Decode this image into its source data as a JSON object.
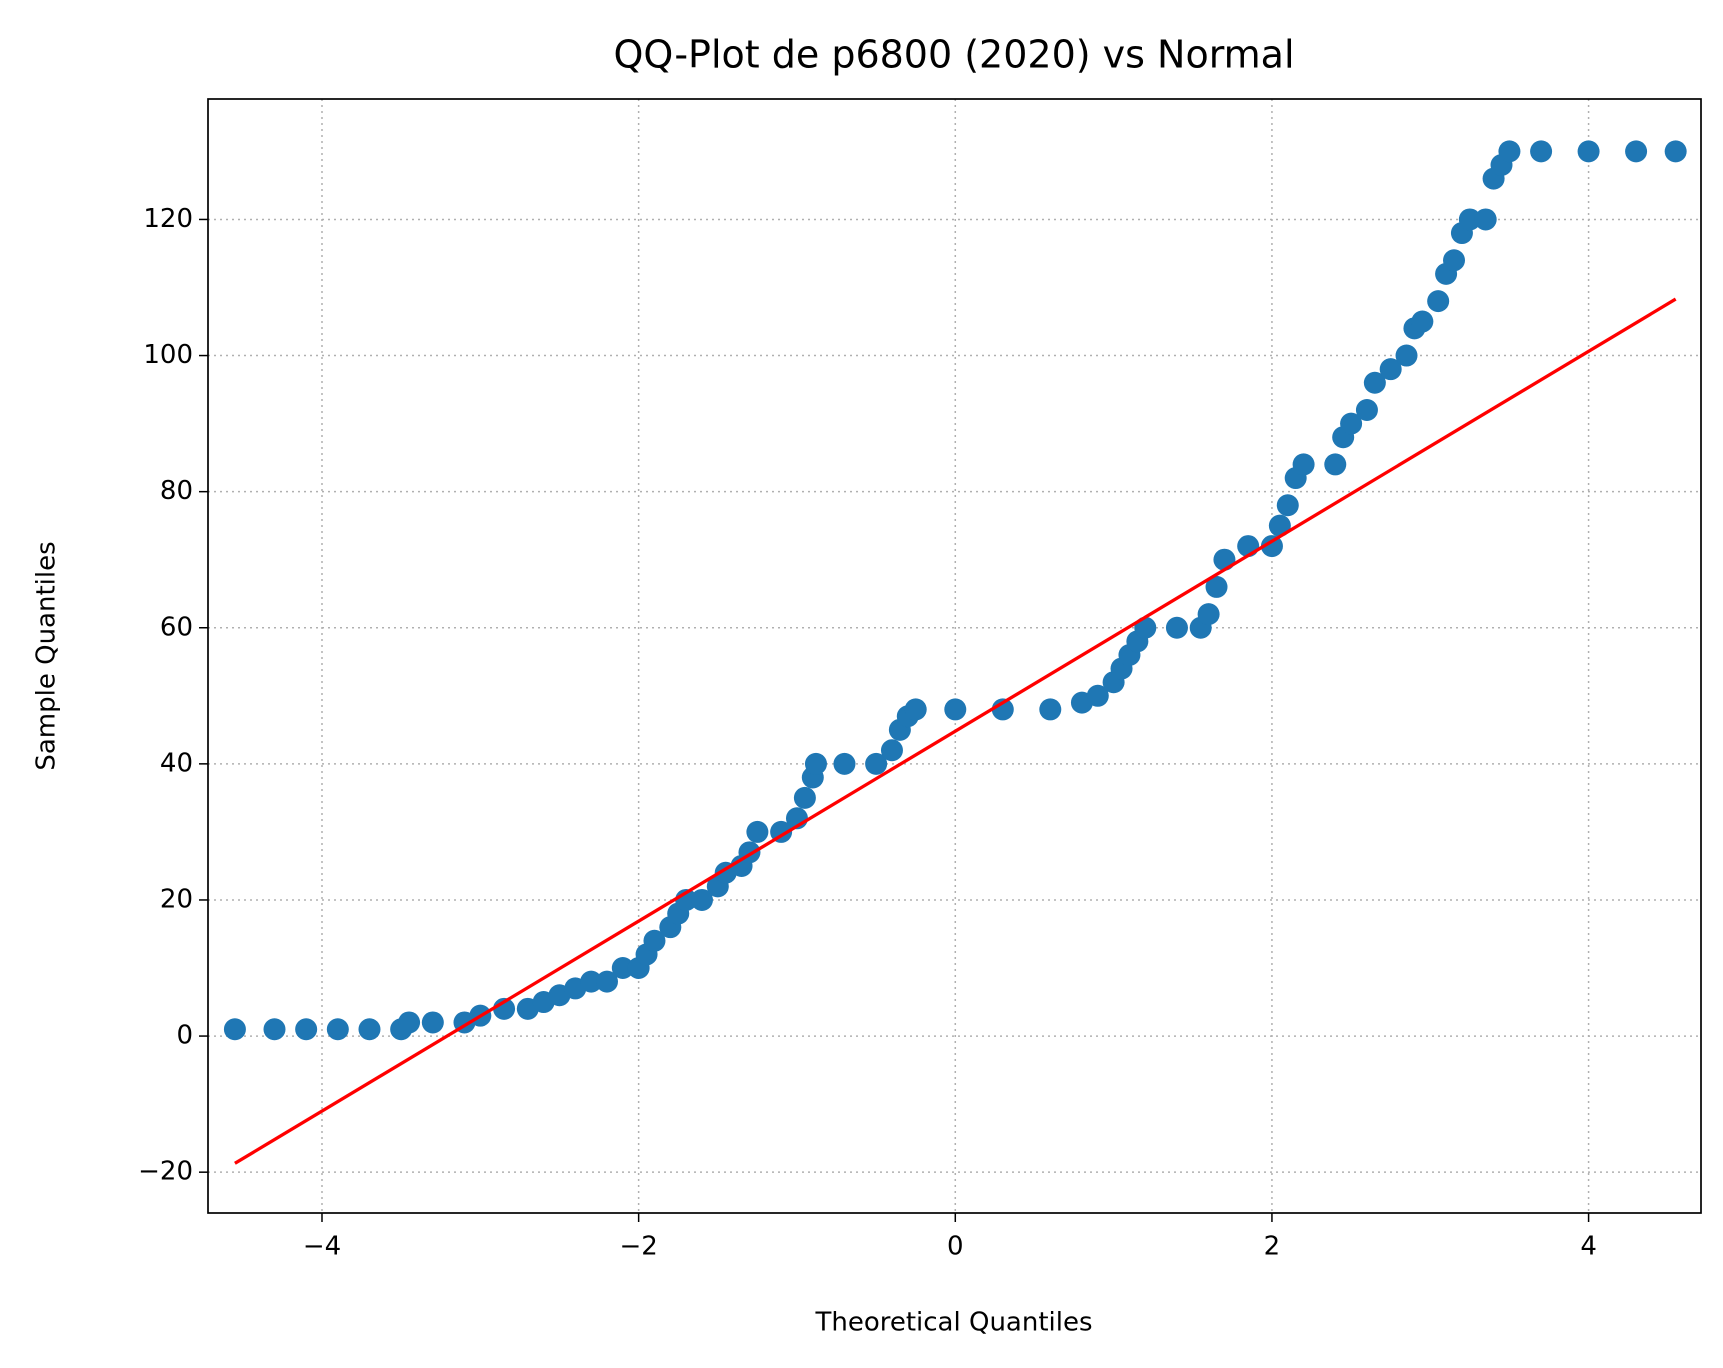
{
  "chart_data": {
    "type": "scatter",
    "title": "QQ-Plot de p6800 (2020) vs Normal",
    "x_label": "Theoretical Quantiles",
    "y_label": "Sample Quantiles",
    "xlim": [
      -4.72,
      4.71
    ],
    "ylim": [
      -26,
      137.7
    ],
    "xticks": [
      {
        "value": -4,
        "label": "−4"
      },
      {
        "value": -2,
        "label": "−2"
      },
      0,
      2,
      4
    ],
    "yticks": [
      {
        "value": -20,
        "label": "−20"
      },
      0,
      20,
      40,
      60,
      80,
      100,
      120
    ],
    "grid": true,
    "series": [
      {
        "type": "scatter",
        "color": "#1f77b4",
        "x": [
          -4.55,
          -4.3,
          -4.1,
          -3.9,
          -3.7,
          -3.5,
          -3.45,
          -3.3,
          -3.1,
          -3.0,
          -2.85,
          -2.7,
          -2.6,
          -2.5,
          -2.4,
          -2.3,
          -2.2,
          -2.1,
          -2.0,
          -1.95,
          -1.9,
          -1.8,
          -1.75,
          -1.7,
          -1.6,
          -1.5,
          -1.45,
          -1.35,
          -1.3,
          -1.25,
          -1.1,
          -1.0,
          -0.95,
          -0.9,
          -0.88,
          -0.7,
          -0.5,
          -0.4,
          -0.35,
          -0.3,
          -0.25,
          0,
          0.3,
          0.6,
          0.8,
          0.9,
          1.0,
          1.05,
          1.1,
          1.15,
          1.2,
          1.4,
          1.55,
          1.6,
          1.65,
          1.7,
          1.85,
          2.0,
          2.05,
          2.1,
          2.15,
          2.2,
          2.4,
          2.45,
          2.5,
          2.6,
          2.65,
          2.75,
          2.85,
          2.9,
          2.95,
          3.05,
          3.1,
          3.15,
          3.2,
          3.25,
          3.35,
          3.4,
          3.45,
          3.5,
          3.7,
          4.0,
          4.3,
          4.55
        ],
        "values": [
          1,
          1,
          1,
          1,
          1,
          1,
          2,
          2,
          2,
          3,
          4,
          4,
          5,
          6,
          7,
          8,
          8,
          10,
          10,
          12,
          14,
          16,
          18,
          20,
          20,
          22,
          24,
          25,
          27,
          30,
          30,
          32,
          35,
          38,
          40,
          40,
          40,
          42,
          45,
          47,
          48,
          48,
          48,
          48,
          49,
          50,
          52,
          54,
          56,
          58,
          60,
          60,
          60,
          62,
          66,
          70,
          72,
          72,
          75,
          78,
          82,
          84,
          84,
          88,
          90,
          92,
          96,
          98,
          100,
          104,
          105,
          108,
          112,
          114,
          118,
          120,
          120,
          126,
          128,
          130,
          130,
          130,
          130,
          130
        ]
      },
      {
        "type": "line",
        "color": "#ff0000",
        "x": [
          -4.55,
          4.55
        ],
        "values": [
          -18.7,
          108.3
        ]
      }
    ]
  }
}
